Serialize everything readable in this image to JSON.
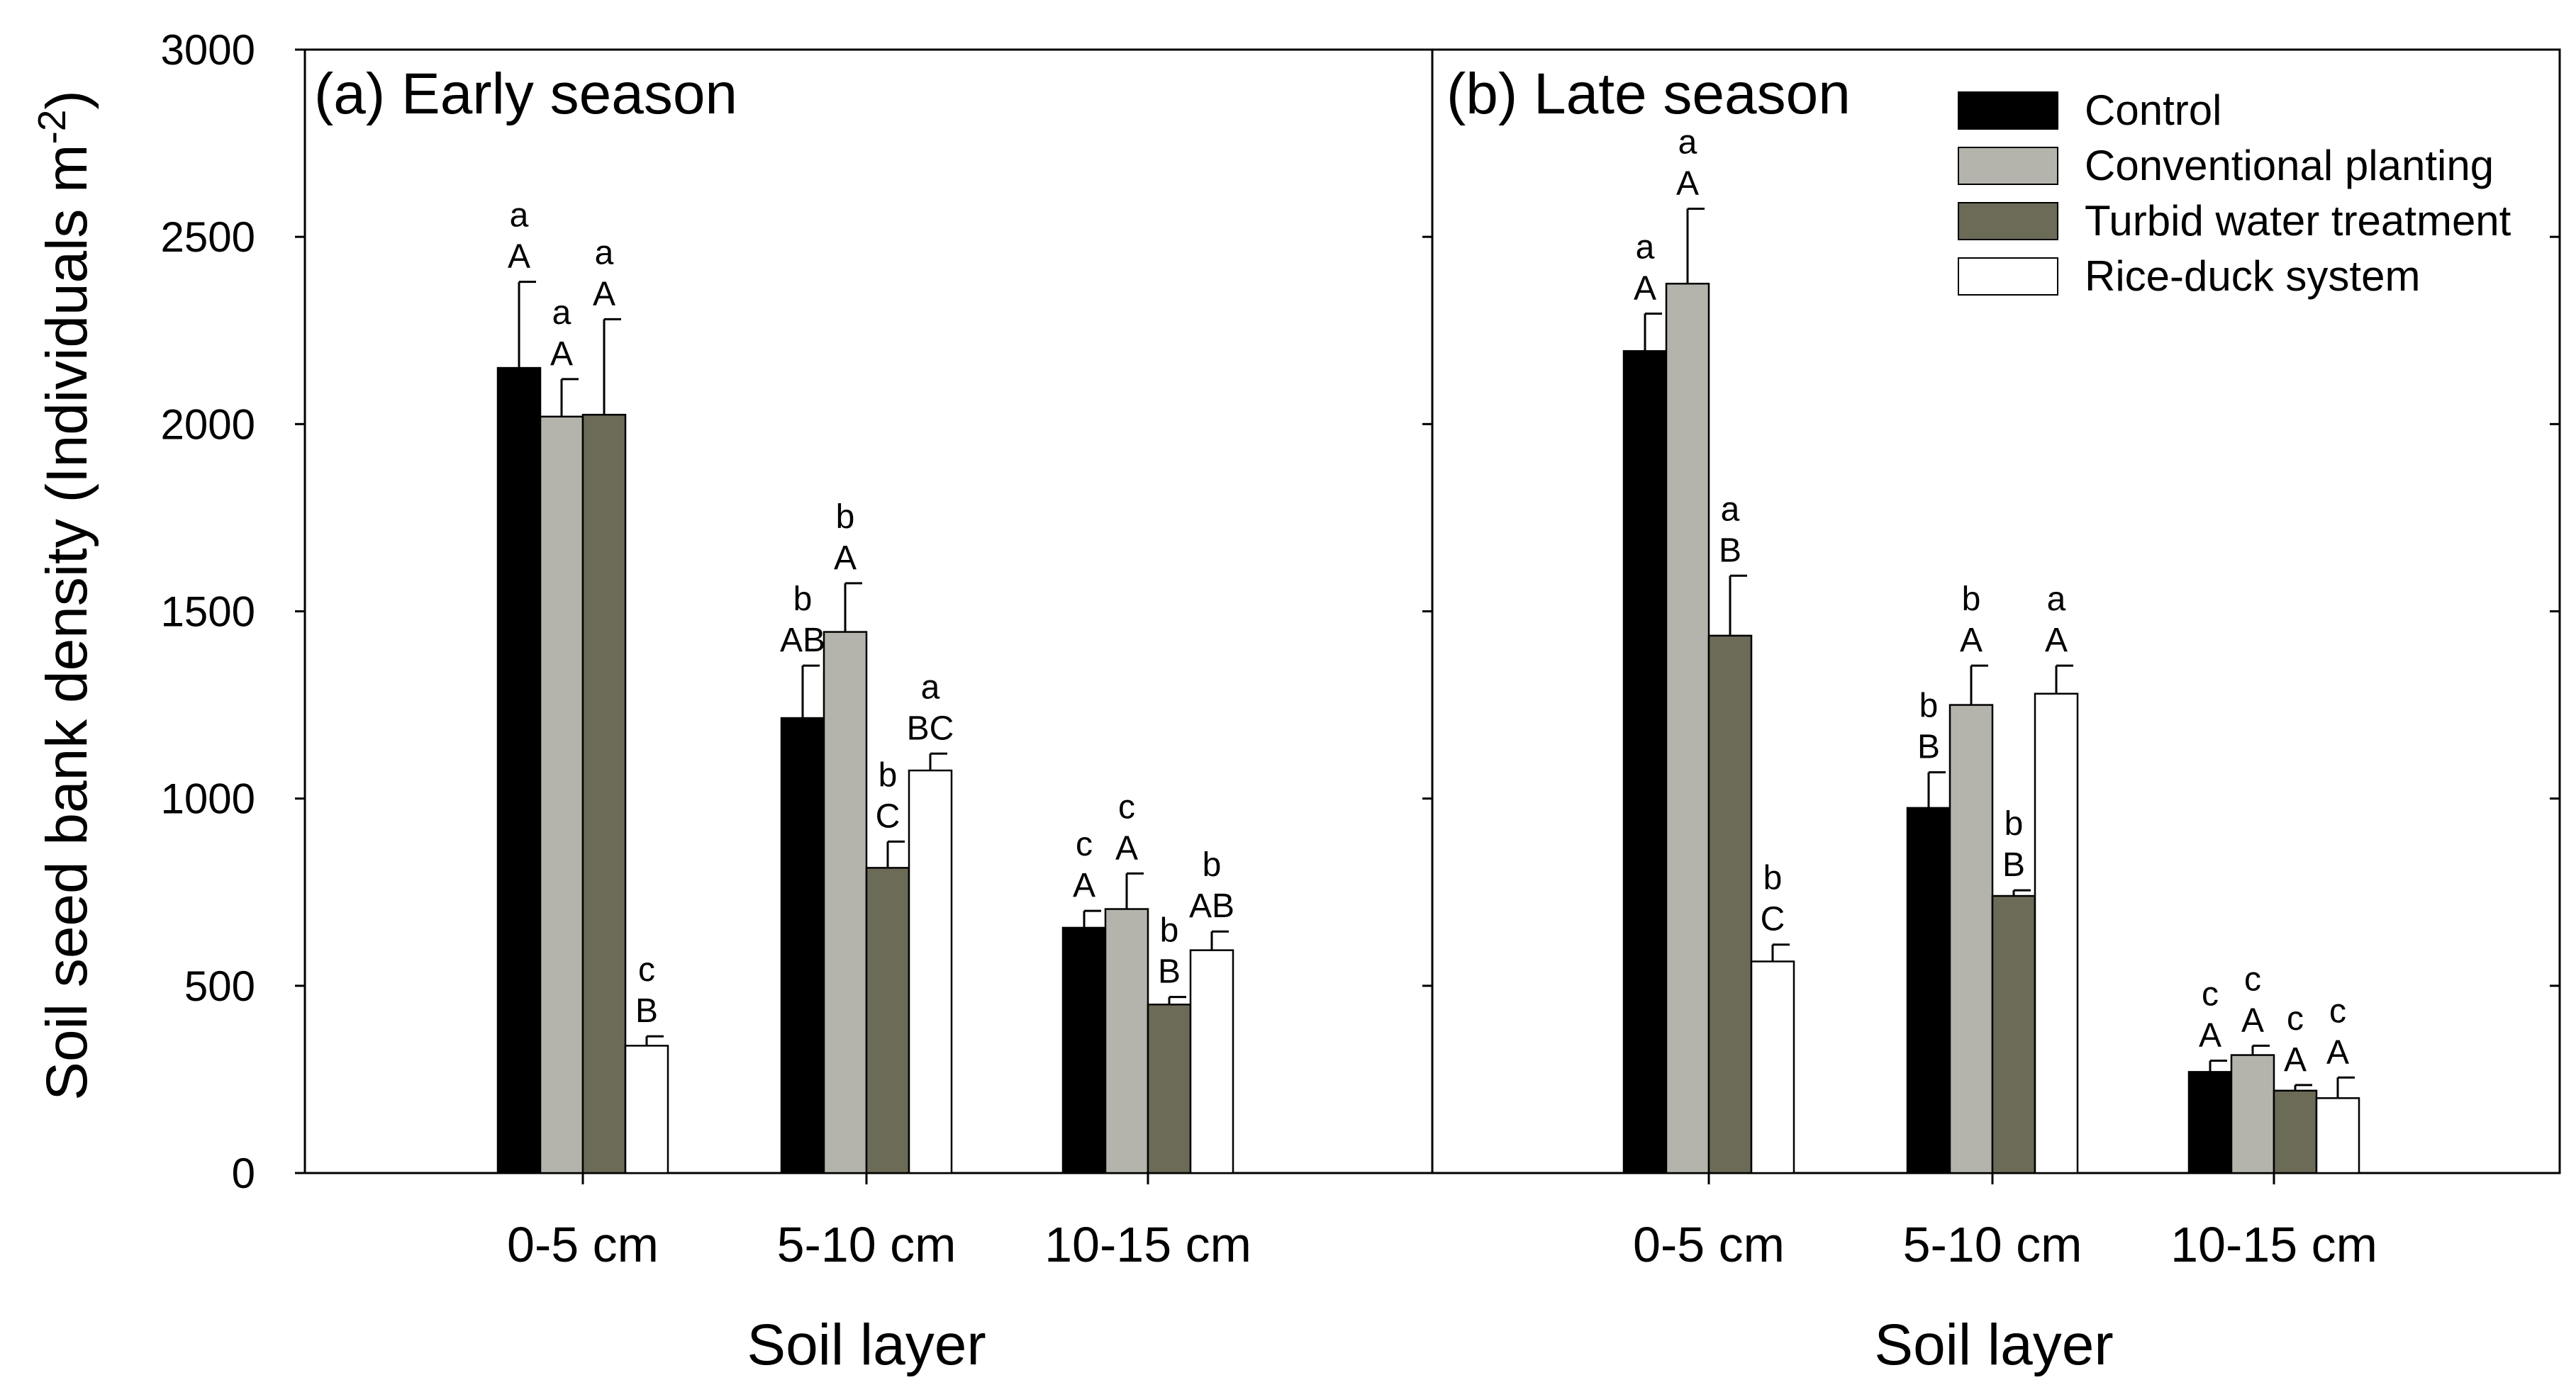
{
  "chart_data": {
    "type": "bar",
    "ylabel": "Soil seed bank density (Individuals m-2)",
    "ylabel_main": "Soil seed bank density (Individuals m",
    "ylabel_sup": "-2",
    "ylabel_close": ")",
    "ylim": [
      0,
      3000
    ],
    "yticks": [
      0,
      500,
      1000,
      1500,
      2000,
      2500,
      3000
    ],
    "colors": [
      "#000000",
      "#b4b4ac",
      "#6b6b57",
      "#ffffff"
    ],
    "legend": {
      "position": "top-right",
      "entries": [
        "Control",
        "Conventional planting",
        "Turbid water treatment",
        "Rice-duck system"
      ]
    },
    "panels": [
      {
        "title": "(a) Early season",
        "xlabel": "Soil layer",
        "categories": [
          "0-5 cm",
          "5-10 cm",
          "10-15 cm"
        ],
        "series": [
          {
            "name": "Control",
            "values": [
              2150,
              1215,
              655
            ],
            "errors": [
              230,
              140,
              45
            ],
            "letters": [
              [
                "a",
                "A"
              ],
              [
                "b",
                "AB"
              ],
              [
                "c",
                "A"
              ]
            ]
          },
          {
            "name": "Conventional planting",
            "values": [
              2020,
              1445,
              705
            ],
            "errors": [
              100,
              130,
              95
            ],
            "letters": [
              [
                "a",
                "A"
              ],
              [
                "b",
                "A"
              ],
              [
                "c",
                "A"
              ]
            ]
          },
          {
            "name": "Turbid water treatment",
            "values": [
              2025,
              815,
              450
            ],
            "errors": [
              255,
              70,
              20
            ],
            "letters": [
              [
                "a",
                "A"
              ],
              [
                "b",
                "C"
              ],
              [
                "b",
                "B"
              ]
            ]
          },
          {
            "name": "Rice-duck system",
            "values": [
              340,
              1075,
              595
            ],
            "errors": [
              25,
              45,
              50
            ],
            "letters": [
              [
                "c",
                "B"
              ],
              [
                "a",
                "BC"
              ],
              [
                "b",
                "AB"
              ]
            ]
          }
        ]
      },
      {
        "title": "(b) Late season",
        "xlabel": "Soil layer",
        "categories": [
          "0-5 cm",
          "5-10 cm",
          "10-15 cm"
        ],
        "series": [
          {
            "name": "Control",
            "values": [
              2195,
              975,
              270
            ],
            "errors": [
              100,
              95,
              30
            ],
            "letters": [
              [
                "a",
                "A"
              ],
              [
                "b",
                "B"
              ],
              [
                "c",
                "A"
              ]
            ]
          },
          {
            "name": "Conventional planting",
            "values": [
              2375,
              1250,
              315
            ],
            "errors": [
              200,
              105,
              25
            ],
            "letters": [
              [
                "a",
                "A"
              ],
              [
                "b",
                "A"
              ],
              [
                "c",
                "A"
              ]
            ]
          },
          {
            "name": "Turbid water treatment",
            "values": [
              1435,
              740,
              220
            ],
            "errors": [
              160,
              15,
              15
            ],
            "letters": [
              [
                "a",
                "B"
              ],
              [
                "b",
                "B"
              ],
              [
                "c",
                "A"
              ]
            ]
          },
          {
            "name": "Rice-duck system",
            "values": [
              565,
              1280,
              200
            ],
            "errors": [
              45,
              75,
              55
            ],
            "letters": [
              [
                "b",
                "C"
              ],
              [
                "a",
                "A"
              ],
              [
                "c",
                "A"
              ]
            ]
          }
        ]
      }
    ]
  }
}
